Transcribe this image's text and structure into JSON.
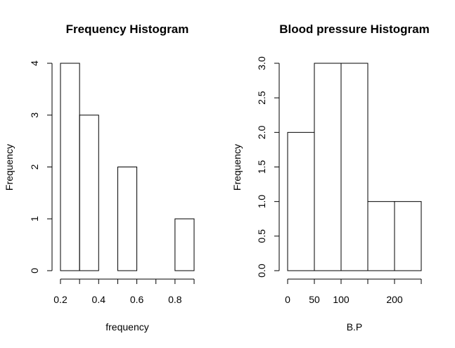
{
  "chart_data": [
    {
      "type": "bar",
      "title": "Frequency Histogram",
      "xlabel": "frequency",
      "ylabel": "Frequency",
      "bins": [
        [
          0.2,
          0.3
        ],
        [
          0.3,
          0.4
        ],
        [
          0.4,
          0.5
        ],
        [
          0.5,
          0.6
        ],
        [
          0.6,
          0.7
        ],
        [
          0.7,
          0.8
        ],
        [
          0.8,
          0.9
        ]
      ],
      "values": [
        4,
        3,
        0,
        2,
        0,
        0,
        1
      ],
      "xlim": [
        0.2,
        0.9
      ],
      "ylim": [
        0,
        4
      ],
      "xticks": [
        0.2,
        0.3,
        0.4,
        0.5,
        0.6,
        0.7,
        0.8,
        0.9
      ],
      "xtick_labels": [
        "0.2",
        "",
        "0.4",
        "",
        "0.6",
        "",
        "0.8",
        ""
      ],
      "yticks": [
        0,
        1,
        2,
        3,
        4
      ],
      "ytick_labels": [
        "0",
        "1",
        "2",
        "3",
        "4"
      ],
      "grid": false
    },
    {
      "type": "bar",
      "title": "Blood pressure Histogram",
      "xlabel": "B.P",
      "ylabel": "Frequency",
      "bins": [
        [
          0,
          50
        ],
        [
          50,
          100
        ],
        [
          100,
          150
        ],
        [
          150,
          200
        ],
        [
          200,
          250
        ]
      ],
      "values": [
        2,
        3,
        3,
        1,
        1
      ],
      "xlim": [
        0,
        250
      ],
      "ylim": [
        0,
        3
      ],
      "xticks": [
        0,
        50,
        100,
        150,
        200,
        250
      ],
      "xtick_labels": [
        "0",
        "50",
        "100",
        "",
        "200",
        ""
      ],
      "yticks": [
        0,
        0.5,
        1,
        1.5,
        2,
        2.5,
        3
      ],
      "ytick_labels": [
        "0.0",
        "0.5",
        "1.0",
        "1.5",
        "2.0",
        "2.5",
        "3.0"
      ],
      "grid": false
    }
  ]
}
